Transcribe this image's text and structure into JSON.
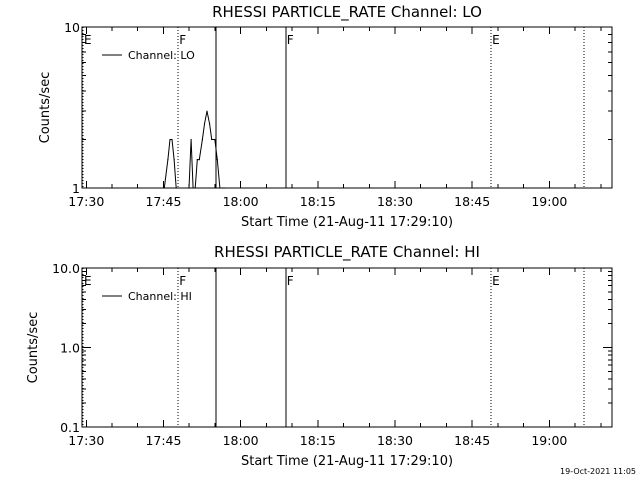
{
  "chart_data": [
    {
      "type": "line",
      "title": "RHESSI PARTICLE_RATE Channel: LO",
      "xlabel": "Start Time (21-Aug-11 17:29:10)",
      "ylabel": "Counts/sec",
      "yscale": "log",
      "ylim": [
        1,
        10
      ],
      "xlim_minutes": [
        0,
        103
      ],
      "ytick_labels": [
        "1",
        "10"
      ],
      "yticks": [
        1,
        10
      ],
      "xticks": [
        0.83,
        15.83,
        30.83,
        45.83,
        60.83,
        75.83,
        90.83
      ],
      "xtick_labels": [
        "17:30",
        "17:45",
        "18:00",
        "18:15",
        "18:30",
        "18:45",
        "19:00"
      ],
      "legend": {
        "label": "Channel: LO",
        "placement": "top-left"
      },
      "series": [
        {
          "x": [
            16.0,
            16.7,
            17.1,
            17.5,
            17.9,
            18.3,
            20.8,
            21.2,
            21.6,
            22.0,
            22.4,
            22.8,
            23.4,
            23.8,
            24.3,
            24.8,
            25.2,
            25.8,
            26.3,
            26.8,
            27.3,
            27.6
          ],
          "y": [
            1,
            1.5,
            2,
            2,
            1.5,
            1,
            1,
            2,
            1,
            1,
            1.5,
            1.5,
            2,
            2.5,
            3,
            2.5,
            2,
            2,
            1.5,
            1,
            1,
            1
          ]
        }
      ],
      "markers": [
        {
          "label": "E",
          "x": 0.2,
          "style": "dotted"
        },
        {
          "label": "F",
          "x": 18.7,
          "style": "dotted"
        },
        {
          "label": "",
          "x": 26.0,
          "style": "solid"
        },
        {
          "label": "F",
          "x": 39.6,
          "style": "solid"
        },
        {
          "label": "E",
          "x": 79.5,
          "style": "dotted"
        },
        {
          "label": "",
          "x": 97.6,
          "style": "dotted"
        }
      ]
    },
    {
      "type": "line",
      "title": "RHESSI PARTICLE_RATE Channel: HI",
      "xlabel": "Start Time (21-Aug-11 17:29:10)",
      "ylabel": "Counts/sec",
      "yscale": "log",
      "ylim": [
        0.1,
        10
      ],
      "xlim_minutes": [
        0,
        103
      ],
      "ytick_labels": [
        "0.1",
        "1.0",
        "10.0"
      ],
      "yticks": [
        0.1,
        1,
        10
      ],
      "xticks": [
        0.83,
        15.83,
        30.83,
        45.83,
        60.83,
        75.83,
        90.83
      ],
      "xtick_labels": [
        "17:30",
        "17:45",
        "18:00",
        "18:15",
        "18:30",
        "18:45",
        "19:00"
      ],
      "legend": {
        "label": "Channel: HI",
        "placement": "top-left"
      },
      "series": [],
      "markers": [
        {
          "label": "E",
          "x": 0.2,
          "style": "dotted"
        },
        {
          "label": "F",
          "x": 18.7,
          "style": "dotted"
        },
        {
          "label": "",
          "x": 26.0,
          "style": "solid"
        },
        {
          "label": "F",
          "x": 39.6,
          "style": "solid"
        },
        {
          "label": "E",
          "x": 79.5,
          "style": "dotted"
        },
        {
          "label": "",
          "x": 97.6,
          "style": "dotted"
        }
      ]
    }
  ],
  "timestamp": "19-Oct-2021 11:05"
}
